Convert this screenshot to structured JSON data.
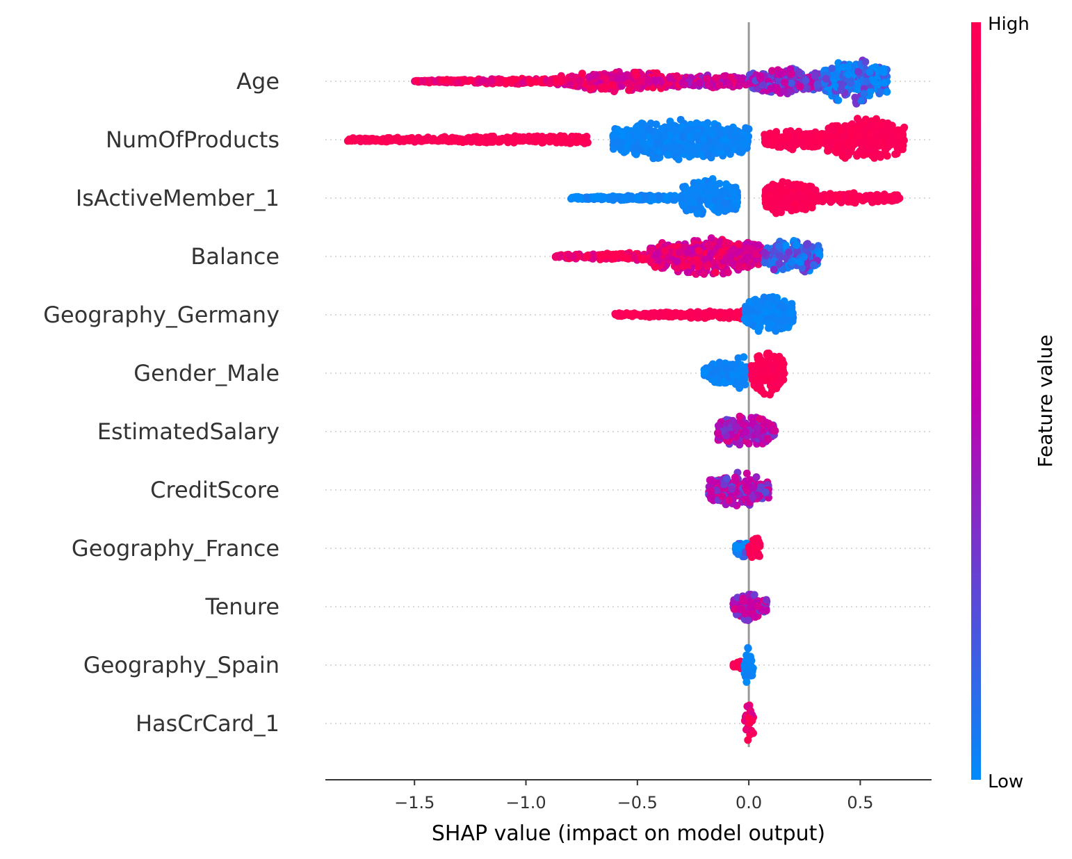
{
  "chart_data": {
    "type": "scatter",
    "subtype": "shap-beeswarm",
    "title": "",
    "xlabel": "SHAP value (impact on model output)",
    "ylabel": "",
    "xlim": [
      -1.9,
      0.82
    ],
    "xticks": [
      -1.5,
      -1.0,
      -0.5,
      0.0,
      0.5
    ],
    "xtick_labels": [
      "−1.5",
      "−1.0",
      "−0.5",
      "0.0",
      "0.5"
    ],
    "zero_line": 0.0,
    "grid": "dotted horizontal guide per feature",
    "colorbar": {
      "title": "Feature value",
      "high_label": "High",
      "low_label": "Low",
      "high_color": "#ff0052",
      "mid_color": "#c000b0",
      "low_color": "#008bfb",
      "placement": "right"
    },
    "features": [
      {
        "name": "Age",
        "segments": [
          {
            "from": -1.5,
            "to": -0.85,
            "tone": 0.95,
            "width": 0.15
          },
          {
            "from": -0.85,
            "to": -0.3,
            "tone": 0.78,
            "width": 0.45
          },
          {
            "from": -0.3,
            "to": 0.0,
            "tone": 0.6,
            "width": 0.3
          },
          {
            "from": 0.0,
            "to": 0.33,
            "tone": 0.4,
            "width": 0.6
          },
          {
            "from": 0.33,
            "to": 0.62,
            "tone": 0.08,
            "width": 1.0
          }
        ]
      },
      {
        "name": "NumOfProducts",
        "segments": [
          {
            "from": -1.8,
            "to": -0.72,
            "tone": 1.0,
            "width": 0.2
          },
          {
            "from": -0.61,
            "to": 0.0,
            "tone": 0.0,
            "width": 0.9
          },
          {
            "from": 0.07,
            "to": 0.35,
            "tone": 1.0,
            "width": 0.45
          },
          {
            "from": 0.35,
            "to": 0.7,
            "tone": 1.0,
            "width": 1.0
          }
        ]
      },
      {
        "name": "IsActiveMember_1",
        "segments": [
          {
            "from": -0.8,
            "to": -0.3,
            "tone": 0.0,
            "width": 0.15
          },
          {
            "from": -0.3,
            "to": -0.05,
            "tone": 0.0,
            "width": 0.85
          },
          {
            "from": 0.07,
            "to": 0.3,
            "tone": 1.0,
            "width": 0.8
          },
          {
            "from": 0.3,
            "to": 0.68,
            "tone": 1.0,
            "width": 0.25
          }
        ]
      },
      {
        "name": "Balance",
        "segments": [
          {
            "from": -0.87,
            "to": -0.45,
            "tone": 0.9,
            "width": 0.2
          },
          {
            "from": -0.45,
            "to": 0.07,
            "tone": 0.75,
            "width": 0.85
          },
          {
            "from": 0.07,
            "to": 0.32,
            "tone": 0.12,
            "width": 0.8
          }
        ]
      },
      {
        "name": "Geography_Germany",
        "segments": [
          {
            "from": -0.6,
            "to": -0.02,
            "tone": 1.0,
            "width": 0.2
          },
          {
            "from": -0.02,
            "to": 0.2,
            "tone": 0.0,
            "width": 0.85
          }
        ]
      },
      {
        "name": "Gender_Male",
        "segments": [
          {
            "from": -0.2,
            "to": -0.01,
            "tone": 0.0,
            "width": 0.85
          },
          {
            "from": 0.01,
            "to": 0.16,
            "tone": 1.0,
            "width": 1.0
          }
        ]
      },
      {
        "name": "EstimatedSalary",
        "segments": [
          {
            "from": -0.14,
            "to": 0.12,
            "tone": 0.5,
            "width": 0.75
          }
        ]
      },
      {
        "name": "CreditScore",
        "segments": [
          {
            "from": -0.18,
            "to": 0.09,
            "tone": 0.45,
            "width": 0.75
          }
        ]
      },
      {
        "name": "Geography_France",
        "segments": [
          {
            "from": -0.06,
            "to": 0.0,
            "tone": 0.05,
            "width": 0.55
          },
          {
            "from": 0.0,
            "to": 0.05,
            "tone": 1.0,
            "width": 0.6
          }
        ]
      },
      {
        "name": "Tenure",
        "segments": [
          {
            "from": -0.07,
            "to": 0.08,
            "tone": 0.5,
            "width": 0.7
          }
        ]
      },
      {
        "name": "Geography_Spain",
        "segments": [
          {
            "from": -0.07,
            "to": -0.01,
            "tone": 1.0,
            "width": 0.3
          },
          {
            "from": -0.02,
            "to": 0.02,
            "tone": 0.0,
            "width": 0.85
          }
        ]
      },
      {
        "name": "HasCrCard_1",
        "segments": [
          {
            "from": -0.02,
            "to": 0.02,
            "tone": 0.9,
            "width": 0.9
          }
        ]
      }
    ]
  }
}
